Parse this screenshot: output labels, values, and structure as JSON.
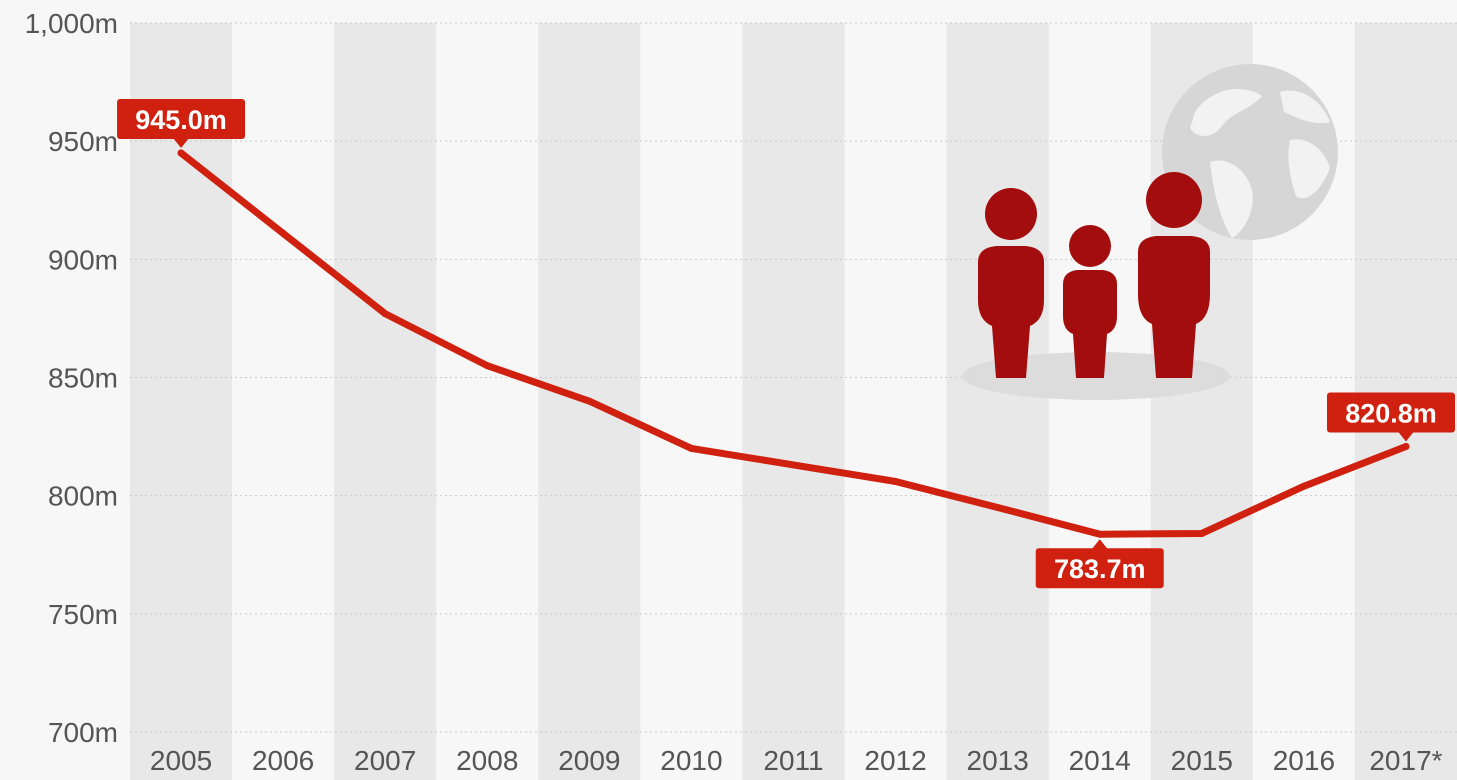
{
  "chart_data": {
    "type": "line",
    "title": "",
    "xlabel": "",
    "ylabel": "",
    "categories": [
      "2005",
      "2006",
      "2007",
      "2008",
      "2009",
      "2010",
      "2011",
      "2012",
      "2013",
      "2014",
      "2015",
      "2016",
      "2017*"
    ],
    "series": [
      {
        "values": [
          945.0,
          911,
          877,
          855,
          840,
          820,
          813,
          806,
          795,
          783.7,
          784,
          804,
          820.8
        ],
        "color": "#d0200f"
      }
    ],
    "ylim": [
      700,
      1000
    ],
    "y_ticks": [
      700,
      750,
      800,
      850,
      900,
      950,
      1000
    ],
    "y_tick_labels": [
      "700m",
      "750m",
      "800m",
      "850m",
      "900m",
      "950m",
      "1,000m"
    ],
    "x_tick_labels": [
      "2005",
      "2006",
      "2007",
      "2008",
      "2009",
      "2010",
      "2011",
      "2012",
      "2013",
      "2014",
      "2015",
      "2016",
      "2017*"
    ],
    "annotations": [
      {
        "index": 0,
        "text": "945.0m",
        "position": "above"
      },
      {
        "index": 9,
        "text": "783.7m",
        "position": "below"
      },
      {
        "index": 12,
        "text": "820.8m",
        "position": "above"
      }
    ],
    "grid": true,
    "alternating_column_bands": true,
    "band_color": "#e8e8e8",
    "line_color": "#d0200f",
    "callout_color": "#d0200f",
    "illustration": [
      "people-icon",
      "globe-icon"
    ]
  }
}
